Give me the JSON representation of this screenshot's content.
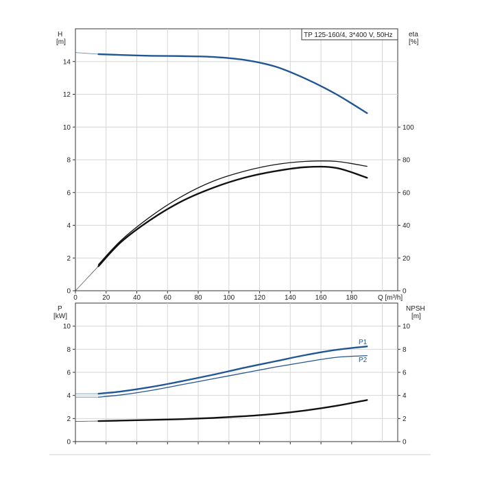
{
  "title_box": "TP 125-160/4, 3*400 V, 50Hz",
  "colors": {
    "blue": "#1f5693",
    "black": "#111111"
  },
  "chart_data": [
    {
      "type": "line",
      "panel": "head-efficiency",
      "xlabel": "Q [m³/h]",
      "ylabel": "H",
      "yunit": "[m]",
      "y2label": "eta",
      "y2unit": "[%]",
      "xlim": [
        0,
        210
      ],
      "ylim": [
        0,
        16
      ],
      "y2lim": [
        0,
        160
      ],
      "grid": true,
      "x_ticks": [
        "0",
        "20",
        "40",
        "60",
        "80",
        "100",
        "120",
        "140",
        "160",
        "180"
      ],
      "y_ticks": [
        "0",
        "2",
        "4",
        "6",
        "8",
        "10",
        "12",
        "14"
      ],
      "y2_ticks": [
        "0",
        "20",
        "40",
        "60",
        "80",
        "100"
      ],
      "series": [
        {
          "axis": "left",
          "color": "#1f5693",
          "x": [
            15,
            30,
            50,
            70,
            90,
            110,
            130,
            150,
            170,
            190
          ],
          "y": [
            14.45,
            14.4,
            14.35,
            14.33,
            14.28,
            14.1,
            13.7,
            12.95,
            12.0,
            10.85
          ],
          "ext_x": [
            0,
            15
          ],
          "ext_y": [
            14.55,
            14.45
          ]
        },
        {
          "axis": "right",
          "color": "#111111",
          "x": [
            15,
            30,
            50,
            70,
            90,
            110,
            130,
            150,
            170,
            190
          ],
          "y": [
            15,
            30,
            44,
            55,
            63,
            69,
            73,
            75.5,
            75,
            69
          ],
          "ext_x": [
            0,
            15
          ],
          "ext_y": [
            0,
            15
          ]
        },
        {
          "axis": "right",
          "color": "#111111",
          "x": [
            15,
            30,
            50,
            70,
            90,
            110,
            130,
            150,
            170,
            190
          ],
          "y": [
            16,
            31,
            46,
            58,
            67,
            73,
            77,
            79,
            79,
            76
          ]
        }
      ]
    },
    {
      "type": "line",
      "panel": "power-npsh",
      "ylabel": "P",
      "yunit": "[kW]",
      "y2label": "NPSH",
      "y2unit": "[m]",
      "xlim": [
        0,
        210
      ],
      "ylim": [
        0,
        12
      ],
      "y2lim": [
        0,
        12
      ],
      "grid": true,
      "y_ticks": [
        "0",
        "2",
        "4",
        "6",
        "8",
        "10"
      ],
      "y2_ticks": [
        "0",
        "2",
        "4",
        "6",
        "8",
        "10"
      ],
      "series": [
        {
          "name": "P1",
          "axis": "left",
          "color": "#1f5693",
          "x": [
            15,
            30,
            50,
            70,
            90,
            110,
            130,
            150,
            170,
            190
          ],
          "y": [
            4.15,
            4.35,
            4.75,
            5.25,
            5.8,
            6.4,
            6.95,
            7.5,
            7.95,
            8.25
          ],
          "ext_x": [
            0,
            15
          ],
          "ext_y": [
            4.15,
            4.15
          ]
        },
        {
          "name": "P2",
          "axis": "left",
          "color": "#1f5693",
          "x": [
            15,
            30,
            50,
            70,
            90,
            110,
            130,
            150,
            170,
            190
          ],
          "y": [
            3.85,
            4.05,
            4.45,
            4.95,
            5.45,
            5.95,
            6.45,
            6.9,
            7.3,
            7.45
          ],
          "ext_x": [
            0,
            15
          ],
          "ext_y": [
            3.85,
            3.85
          ]
        },
        {
          "axis": "right",
          "color": "#111111",
          "x": [
            15,
            30,
            50,
            70,
            90,
            110,
            130,
            150,
            170,
            190
          ],
          "y": [
            1.78,
            1.82,
            1.88,
            1.95,
            2.05,
            2.2,
            2.4,
            2.7,
            3.1,
            3.6
          ],
          "ext_x": [
            0,
            15
          ],
          "ext_y": [
            1.75,
            1.78
          ]
        }
      ]
    }
  ]
}
